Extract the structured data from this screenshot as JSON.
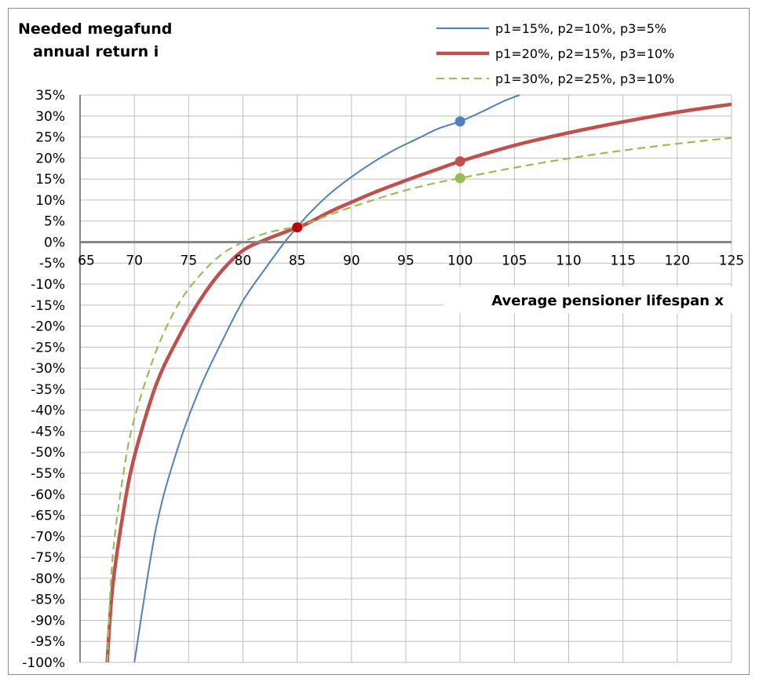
{
  "chart_data": {
    "type": "line",
    "ylabel_lines": [
      "Needed megafund",
      "annual return i"
    ],
    "xlabel": "Average pensioner lifespan x",
    "xlim": [
      65,
      125
    ],
    "ylim": [
      -100,
      35
    ],
    "x_ticks": [
      65,
      70,
      75,
      80,
      85,
      90,
      95,
      100,
      105,
      110,
      115,
      120,
      125
    ],
    "x_tick_labels": [
      "65",
      "70",
      "75",
      "80",
      "85",
      "90",
      "95",
      "100",
      "105",
      "110",
      "115",
      "120",
      "125"
    ],
    "y_ticks": [
      35,
      30,
      25,
      20,
      15,
      10,
      5,
      0,
      -5,
      -10,
      -15,
      -20,
      -25,
      -30,
      -35,
      -40,
      -45,
      -50,
      -55,
      -60,
      -65,
      -70,
      -75,
      -80,
      -85,
      -90,
      -95,
      -100
    ],
    "y_tick_labels": [
      "35%",
      "30%",
      "25%",
      "20%",
      "15%",
      "10%",
      "5%",
      "0%",
      "-5%",
      "-10%",
      "-15%",
      "-20%",
      "-25%",
      "-30%",
      "-35%",
      "-40%",
      "-45%",
      "-50%",
      "-55%",
      "-60%",
      "-65%",
      "-70%",
      "-75%",
      "-80%",
      "-85%",
      "-90%",
      "-95%",
      "-100%"
    ],
    "grid": true,
    "legend_position": "top-right",
    "series": [
      {
        "name": "p1=15%, p2=10%, p3=5%",
        "color": "#4f81bd",
        "style": "solid",
        "weight": "thin",
        "x": [
          70,
          72,
          74,
          76,
          78,
          80,
          82,
          84,
          85,
          86,
          88,
          90,
          92,
          94,
          96,
          98,
          100,
          102,
          104,
          105.5
        ],
        "y": [
          -100,
          -68,
          -49,
          -35,
          -24,
          -14,
          -6.5,
          0.5,
          3.5,
          6.5,
          11.5,
          15.5,
          19,
          22,
          24.5,
          27,
          28.7,
          31,
          33.5,
          35
        ]
      },
      {
        "name": "p1=20%, p2=15%, p3=10%",
        "color": "#c0504d",
        "style": "solid",
        "weight": "thick",
        "x": [
          67.5,
          68,
          69,
          70,
          72,
          74,
          76,
          78,
          80,
          82,
          84,
          85,
          86,
          88,
          90,
          92,
          94,
          96,
          98,
          100,
          105,
          110,
          115,
          120,
          125
        ],
        "y": [
          -100,
          -82,
          -64,
          -51,
          -34,
          -23,
          -14,
          -7,
          -2,
          0.5,
          2.5,
          3.5,
          4.5,
          7.2,
          9.5,
          11.7,
          13.7,
          15.6,
          17.4,
          19.2,
          23,
          26,
          28.6,
          30.9,
          32.8
        ]
      },
      {
        "name": "p1=30%, p2=25%, p3=10%",
        "color": "#9bbb59",
        "style": "dashed",
        "weight": "medium",
        "x": [
          67.5,
          68,
          69,
          70,
          72,
          74,
          76,
          78,
          80,
          82,
          84,
          85,
          86,
          88,
          90,
          92,
          94,
          96,
          98,
          100,
          105,
          110,
          115,
          120,
          125
        ],
        "y": [
          -100,
          -75,
          -55,
          -42,
          -26,
          -15,
          -8,
          -3,
          0,
          2,
          3.2,
          3.5,
          4.5,
          6.5,
          8.3,
          10,
          11.6,
          13,
          14.2,
          15.2,
          17.7,
          19.9,
          21.8,
          23.4,
          24.8
        ]
      }
    ],
    "markers": [
      {
        "series": 0,
        "x": 100,
        "y": 28.7,
        "color": "#4f81bd"
      },
      {
        "series": 1,
        "x": 100,
        "y": 19.2,
        "color": "#c0504d"
      },
      {
        "series": 2,
        "x": 100,
        "y": 15.2,
        "color": "#9bbb59"
      },
      {
        "series": 1,
        "x": 85,
        "y": 3.5,
        "color": "#c00000"
      }
    ]
  }
}
